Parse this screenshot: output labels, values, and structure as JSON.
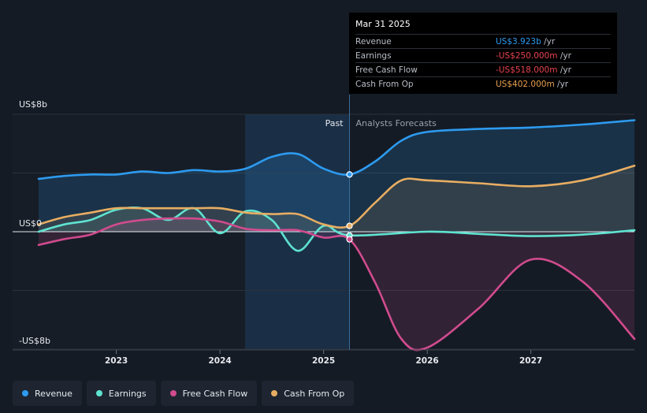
{
  "tooltip": {
    "date": "Mar 31 2025",
    "rows": [
      {
        "label": "Revenue",
        "value": "US$3.923b",
        "unit": "/yr",
        "color": "#2d9bf0"
      },
      {
        "label": "Earnings",
        "value": "-US$250.000m",
        "unit": "/yr",
        "color": "#e8434f"
      },
      {
        "label": "Free Cash Flow",
        "value": "-US$518.000m",
        "unit": "/yr",
        "color": "#e8434f"
      },
      {
        "label": "Cash From Op",
        "value": "US$402.000m",
        "unit": "/yr",
        "color": "#e8a04f"
      }
    ]
  },
  "legend": [
    {
      "label": "Revenue",
      "color": "#2d9bf0"
    },
    {
      "label": "Earnings",
      "color": "#5fe3d0"
    },
    {
      "label": "Free Cash Flow",
      "color": "#d04b8e"
    },
    {
      "label": "Cash From Op",
      "color": "#e8ad62"
    }
  ],
  "chart_data": {
    "type": "line",
    "y_tick_labels": [
      "US$8b",
      "US$0",
      "-US$8b"
    ],
    "ylim": [
      -8,
      8
    ],
    "xlim": [
      2022.25,
      2028.0
    ],
    "x_ticks": [
      2023,
      2024,
      2025,
      2026,
      2027
    ],
    "past_label": "Past",
    "forecast_label": "Analysts Forecasts",
    "highlight_x": 2025.25,
    "series": [
      {
        "name": "Revenue",
        "color": "#2d9bf0",
        "x": [
          2022.25,
          2022.5,
          2022.75,
          2023.0,
          2023.25,
          2023.5,
          2023.75,
          2024.0,
          2024.25,
          2024.5,
          2024.75,
          2025.0,
          2025.25,
          2025.5,
          2025.75,
          2026.0,
          2026.5,
          2027.0,
          2027.5,
          2028.0
        ],
        "y": [
          3.6,
          3.8,
          3.9,
          3.9,
          4.1,
          4.0,
          4.2,
          4.1,
          4.3,
          5.1,
          5.3,
          4.3,
          3.9,
          4.8,
          6.2,
          6.8,
          7.0,
          7.1,
          7.3,
          7.6
        ]
      },
      {
        "name": "Earnings",
        "color": "#5fe3d0",
        "x": [
          2022.25,
          2022.5,
          2022.75,
          2023.0,
          2023.25,
          2023.5,
          2023.75,
          2024.0,
          2024.25,
          2024.5,
          2024.75,
          2025.0,
          2025.25,
          2026.0,
          2026.5,
          2027.0,
          2027.5,
          2028.0
        ],
        "y": [
          0.0,
          0.5,
          0.8,
          1.5,
          1.6,
          0.8,
          1.6,
          -0.1,
          1.4,
          0.8,
          -1.3,
          0.4,
          -0.25,
          0.0,
          -0.15,
          -0.3,
          -0.2,
          0.1
        ]
      },
      {
        "name": "Free Cash Flow",
        "color": "#d04b8e",
        "x": [
          2022.25,
          2022.5,
          2022.75,
          2023.0,
          2023.25,
          2023.5,
          2023.75,
          2024.0,
          2024.25,
          2024.5,
          2024.75,
          2025.0,
          2025.25,
          2025.5,
          2025.75,
          2026.0,
          2026.5,
          2027.0,
          2027.5,
          2028.0
        ],
        "y": [
          -0.9,
          -0.5,
          -0.2,
          0.5,
          0.8,
          0.9,
          0.9,
          0.7,
          0.2,
          0.1,
          0.1,
          -0.4,
          -0.52,
          -3.5,
          -7.3,
          -7.9,
          -5.2,
          -1.9,
          -3.4,
          -7.3
        ]
      },
      {
        "name": "Cash From Op",
        "color": "#e8ad62",
        "x": [
          2022.25,
          2022.5,
          2022.75,
          2023.0,
          2023.25,
          2023.5,
          2023.75,
          2024.0,
          2024.25,
          2024.5,
          2024.75,
          2025.0,
          2025.25,
          2025.5,
          2025.75,
          2026.0,
          2026.5,
          2027.0,
          2027.5,
          2028.0
        ],
        "y": [
          0.5,
          1.0,
          1.3,
          1.6,
          1.6,
          1.6,
          1.6,
          1.6,
          1.3,
          1.2,
          1.2,
          0.5,
          0.4,
          2.0,
          3.5,
          3.5,
          3.3,
          3.1,
          3.5,
          4.5
        ]
      }
    ]
  }
}
